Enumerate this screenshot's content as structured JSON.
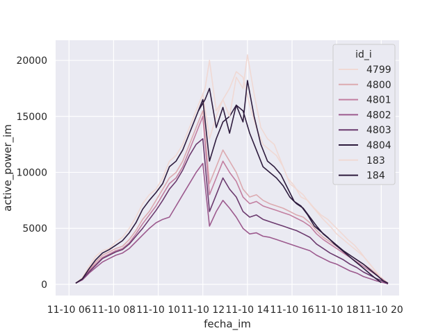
{
  "chart_data": {
    "type": "line",
    "xlabel": "fecha_im",
    "ylabel": "active_power_im",
    "x_tick_labels": [
      "11-10 06",
      "11-10 08",
      "11-10 10",
      "11-10 12",
      "11-10 14",
      "11-10 16",
      "11-10 18",
      "11-10 20"
    ],
    "x_ticks_hours": [
      6,
      8,
      10,
      12,
      14,
      16,
      18,
      20
    ],
    "xlim_hours": [
      5.4,
      20.8
    ],
    "y_ticks": [
      0,
      5000,
      10000,
      15000,
      20000
    ],
    "y_tick_labels": [
      "0",
      "5000",
      "10000",
      "15000",
      "20000"
    ],
    "ylim": [
      -1000,
      21800
    ],
    "grid": true,
    "legend": {
      "title": "id_i",
      "placement": "top-right"
    },
    "series": [
      {
        "name": "4799",
        "color": "#f0d9d4",
        "x": [
          6.3,
          6.6,
          6.9,
          7.2,
          7.5,
          7.8,
          8.1,
          8.4,
          8.7,
          9.0,
          9.3,
          9.6,
          9.9,
          10.2,
          10.5,
          10.8,
          11.1,
          11.4,
          11.7,
          12.0,
          12.3,
          12.6,
          12.9,
          13.2,
          13.5,
          13.8,
          14.1,
          14.4,
          14.7,
          15.0,
          15.3,
          15.6,
          15.9,
          16.2,
          16.5,
          16.8,
          17.1,
          17.4,
          17.7,
          18.0,
          18.3,
          18.6,
          18.9,
          19.2,
          19.5,
          19.8,
          20.1,
          20.3
        ],
        "y": [
          100,
          600,
          1600,
          2500,
          3000,
          3200,
          3800,
          4200,
          5000,
          6000,
          7200,
          8000,
          8500,
          9500,
          11000,
          11500,
          12500,
          14000,
          15500,
          17000,
          13000,
          15000,
          16500,
          17500,
          19000,
          18500,
          16000,
          14000,
          12500,
          12000,
          11500,
          10500,
          9000,
          8500,
          8000,
          7200,
          6500,
          5800,
          5200,
          4500,
          4000,
          3500,
          3000,
          2500,
          1800,
          1000,
          400,
          100
        ]
      },
      {
        "name": "4800",
        "color": "#dcaab0",
        "x": [
          6.3,
          6.6,
          6.9,
          7.2,
          7.5,
          7.8,
          8.1,
          8.4,
          8.7,
          9.0,
          9.3,
          9.6,
          9.9,
          10.2,
          10.5,
          10.8,
          11.1,
          11.4,
          11.7,
          12.0,
          12.3,
          12.6,
          12.9,
          13.2,
          13.5,
          13.8,
          14.1,
          14.4,
          14.7,
          15.0,
          15.3,
          15.6,
          15.9,
          16.2,
          16.5,
          16.8,
          17.1,
          17.4,
          17.7,
          18.0,
          18.3,
          18.6,
          18.9,
          19.2,
          19.5,
          19.8,
          20.1,
          20.3
        ],
        "y": [
          100,
          500,
          1300,
          2000,
          2600,
          2900,
          3200,
          3400,
          4000,
          4800,
          5800,
          6500,
          7500,
          8500,
          9500,
          10000,
          11000,
          12500,
          14000,
          15500,
          9000,
          10500,
          12000,
          11000,
          10000,
          8500,
          7800,
          8000,
          7500,
          7200,
          7000,
          6800,
          6500,
          6200,
          6000,
          5500,
          4800,
          4200,
          3800,
          3400,
          3000,
          2600,
          2200,
          1800,
          1400,
          900,
          400,
          100
        ]
      },
      {
        "name": "4801",
        "color": "#c27ea0",
        "x": [
          6.3,
          6.6,
          6.9,
          7.2,
          7.5,
          7.8,
          8.1,
          8.4,
          8.7,
          9.0,
          9.3,
          9.6,
          9.9,
          10.2,
          10.5,
          10.8,
          11.1,
          11.4,
          11.7,
          12.0,
          12.3,
          12.6,
          12.9,
          13.2,
          13.5,
          13.8,
          14.1,
          14.4,
          14.7,
          15.0,
          15.3,
          15.6,
          15.9,
          16.2,
          16.5,
          16.8,
          17.1,
          17.4,
          17.7,
          18.0,
          18.3,
          18.6,
          18.9,
          19.2,
          19.5,
          19.8,
          20.1,
          20.3
        ],
        "y": [
          100,
          450,
          1200,
          1800,
          2400,
          2700,
          3000,
          3200,
          3700,
          4500,
          5400,
          6200,
          7000,
          8000,
          9000,
          9500,
          10500,
          12000,
          13500,
          15000,
          8000,
          9500,
          11000,
          10000,
          9200,
          7800,
          7200,
          7400,
          7000,
          6800,
          6600,
          6400,
          6200,
          5900,
          5600,
          5200,
          4500,
          4000,
          3600,
          3200,
          2800,
          2400,
          2000,
          1600,
          1200,
          800,
          350,
          100
        ]
      },
      {
        "name": "4802",
        "color": "#9c5a8e",
        "x": [
          6.3,
          6.6,
          6.9,
          7.2,
          7.5,
          7.8,
          8.1,
          8.4,
          8.7,
          9.0,
          9.3,
          9.6,
          9.9,
          10.2,
          10.5,
          10.8,
          11.1,
          11.4,
          11.7,
          12.0,
          12.3,
          12.6,
          12.9,
          13.2,
          13.5,
          13.8,
          14.1,
          14.4,
          14.7,
          15.0,
          15.3,
          15.6,
          15.9,
          16.2,
          16.5,
          16.8,
          17.1,
          17.4,
          17.7,
          18.0,
          18.3,
          18.6,
          18.9,
          19.2,
          19.5,
          19.8,
          20.1,
          20.3
        ],
        "y": [
          100,
          400,
          1000,
          1500,
          2000,
          2300,
          2600,
          2800,
          3200,
          3800,
          4400,
          5000,
          5500,
          5800,
          6000,
          7000,
          8000,
          9000,
          10000,
          10800,
          5200,
          6500,
          7500,
          6800,
          6000,
          5000,
          4500,
          4600,
          4300,
          4200,
          4000,
          3800,
          3600,
          3400,
          3200,
          3000,
          2600,
          2300,
          2000,
          1800,
          1500,
          1200,
          1000,
          700,
          500,
          300,
          150,
          50
        ]
      },
      {
        "name": "4803",
        "color": "#6b3a6e",
        "x": [
          6.3,
          6.6,
          6.9,
          7.2,
          7.5,
          7.8,
          8.1,
          8.4,
          8.7,
          9.0,
          9.3,
          9.6,
          9.9,
          10.2,
          10.5,
          10.8,
          11.1,
          11.4,
          11.7,
          12.0,
          12.3,
          12.6,
          12.9,
          13.2,
          13.5,
          13.8,
          14.1,
          14.4,
          14.7,
          15.0,
          15.3,
          15.6,
          15.9,
          16.2,
          16.5,
          16.8,
          17.1,
          17.4,
          17.7,
          18.0,
          18.3,
          18.6,
          18.9,
          19.2,
          19.5,
          19.8,
          20.1,
          20.3
        ],
        "y": [
          100,
          450,
          1100,
          1700,
          2300,
          2600,
          2900,
          3100,
          3600,
          4300,
          5000,
          5800,
          6600,
          7500,
          8500,
          9200,
          10200,
          11500,
          12500,
          13000,
          6500,
          8000,
          9500,
          8500,
          7800,
          6500,
          6000,
          6200,
          5800,
          5600,
          5400,
          5200,
          5000,
          4800,
          4500,
          4200,
          3600,
          3200,
          2800,
          2500,
          2200,
          1800,
          1500,
          1100,
          800,
          500,
          250,
          50
        ]
      },
      {
        "name": "4804",
        "color": "#2d1b3d",
        "x": [
          6.3,
          6.6,
          6.9,
          7.2,
          7.5,
          7.8,
          8.1,
          8.4,
          8.7,
          9.0,
          9.3,
          9.6,
          9.9,
          10.2,
          10.5,
          10.8,
          11.1,
          11.4,
          11.7,
          12.0,
          12.3,
          12.6,
          12.9,
          13.2,
          13.5,
          13.8,
          14.1,
          14.4,
          14.7,
          15.0,
          15.3,
          15.6,
          15.9,
          16.2,
          16.5,
          16.8,
          17.1,
          17.4,
          17.7,
          18.0,
          18.3,
          18.6,
          18.9,
          19.2,
          19.5,
          19.8,
          20.1,
          20.3
        ],
        "y": [
          100,
          500,
          1400,
          2200,
          2800,
          3100,
          3500,
          3900,
          4600,
          5500,
          6700,
          7500,
          8200,
          9000,
          10500,
          11000,
          12000,
          13500,
          15000,
          16500,
          11000,
          13000,
          14500,
          15000,
          16000,
          15500,
          13500,
          12000,
          10500,
          10000,
          9500,
          8800,
          7800,
          7200,
          6800,
          6000,
          5200,
          4500,
          4000,
          3500,
          3000,
          2600,
          2200,
          1800,
          1300,
          800,
          300,
          100
        ]
      },
      {
        "name": "183",
        "color": "#f0d9d4",
        "x": [
          11.8,
          12.1,
          12.3,
          12.6,
          12.9,
          13.2,
          13.5,
          13.8,
          14.0,
          14.3,
          14.6,
          14.9,
          15.2,
          15.5,
          15.8,
          16.1,
          16.4,
          16.7,
          17.0,
          17.3,
          17.6,
          17.9,
          18.2,
          18.5,
          18.8,
          19.1,
          19.4,
          19.7,
          20.0
        ],
        "y": [
          16000,
          17500,
          20000,
          15500,
          16500,
          15000,
          18500,
          17500,
          20500,
          17000,
          14000,
          13000,
          12500,
          11000,
          9500,
          8800,
          7800,
          7500,
          6800,
          6200,
          5800,
          5200,
          4600,
          4000,
          3500,
          2800,
          2000,
          1300,
          600
        ]
      },
      {
        "name": "184",
        "color": "#2d1b3d",
        "x": [
          11.8,
          12.1,
          12.3,
          12.6,
          12.9,
          13.2,
          13.5,
          13.8,
          14.0,
          14.3,
          14.6,
          14.9,
          15.2,
          15.5,
          15.8,
          16.1,
          16.4,
          16.7,
          17.0,
          17.3,
          17.6,
          17.9,
          18.2,
          18.5,
          18.8,
          19.1,
          19.4,
          19.7,
          20.0
        ],
        "y": [
          15500,
          16500,
          17500,
          14000,
          15800,
          13500,
          16000,
          14500,
          18200,
          15000,
          12500,
          11000,
          10500,
          9800,
          8600,
          7400,
          7000,
          6200,
          5200,
          4700,
          4200,
          3600,
          3100,
          2600,
          2100,
          1600,
          1100,
          600,
          150
        ]
      }
    ]
  }
}
